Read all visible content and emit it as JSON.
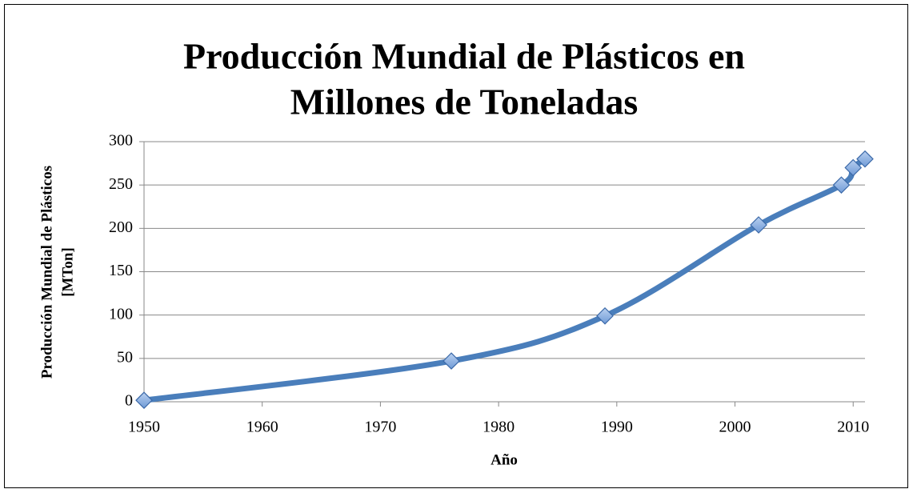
{
  "chart_data": {
    "type": "line",
    "title": [
      "Producción Mundial de Plásticos en",
      "Millones de Toneladas"
    ],
    "x_label": "Año",
    "y_label": [
      "Producción Mundial de Plásticos",
      "[MTon]"
    ],
    "x": [
      1950,
      1976,
      1989,
      2002,
      2009,
      2010,
      2011
    ],
    "series": [
      {
        "name": "Producción",
        "color": "#4a7ebb",
        "values": [
          1.7,
          47,
          99,
          204,
          250,
          270,
          280
        ]
      }
    ],
    "xlim": [
      1950,
      2011
    ],
    "xticks": [
      1950,
      1960,
      1970,
      1980,
      1990,
      2000,
      2010
    ],
    "ylim": [
      0,
      300
    ],
    "yticks": [
      0,
      50,
      100,
      150,
      200,
      250,
      300
    ],
    "grid": true,
    "smooth": true
  }
}
